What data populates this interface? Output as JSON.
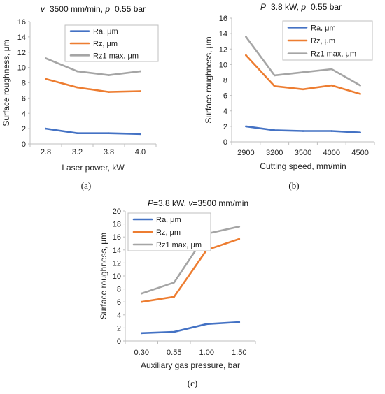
{
  "chart_data": [
    {
      "type": "line",
      "panel_label": "(a)",
      "title_parts": [
        "v",
        "=3500 mm/min, ",
        "p",
        "=0.55 bar"
      ],
      "xlabel": "Laser power, kW",
      "ylabel": "Surface roughness, μm",
      "categories": [
        "2.8",
        "3.2",
        "3.8",
        "4.0"
      ],
      "ylim": [
        0,
        16
      ],
      "yticks": [
        0,
        2,
        4,
        6,
        8,
        10,
        12,
        14,
        16
      ],
      "grid": false,
      "legend_position": "top-right",
      "series": [
        {
          "name": "Ra, μm",
          "color": "#4472C4",
          "values": [
            2.0,
            1.4,
            1.4,
            1.3
          ]
        },
        {
          "name": "Rz, μm",
          "color": "#ED7D31",
          "values": [
            8.5,
            7.4,
            6.8,
            6.9
          ]
        },
        {
          "name": "Rz1 max, μm",
          "color": "#A5A5A5",
          "values": [
            11.2,
            9.5,
            9.0,
            9.5
          ]
        }
      ]
    },
    {
      "type": "line",
      "panel_label": "(b)",
      "title_parts": [
        "P",
        "=3.8 kW, ",
        "p",
        "=0.55 bar"
      ],
      "xlabel": "Cutting speed, mm/min",
      "ylabel": "Surface roughness, μm",
      "categories": [
        "2900",
        "3200",
        "3500",
        "4000",
        "4500"
      ],
      "ylim": [
        0,
        16
      ],
      "yticks": [
        0,
        2,
        4,
        6,
        8,
        10,
        12,
        14,
        16
      ],
      "grid": false,
      "legend_position": "top-right",
      "series": [
        {
          "name": "Ra, μm",
          "color": "#4472C4",
          "values": [
            2.0,
            1.5,
            1.4,
            1.4,
            1.2
          ]
        },
        {
          "name": "Rz, μm",
          "color": "#ED7D31",
          "values": [
            11.2,
            7.2,
            6.8,
            7.3,
            6.2
          ]
        },
        {
          "name": "Rz1 max, μm",
          "color": "#A5A5A5",
          "values": [
            13.6,
            8.6,
            9.0,
            9.4,
            7.3
          ]
        }
      ]
    },
    {
      "type": "line",
      "panel_label": "(c)",
      "title_parts": [
        "P",
        "=3.8 kW, ",
        "v",
        "=3500 mm/min"
      ],
      "xlabel": "Auxiliary gas pressure, bar",
      "ylabel": "Surface roughness, μm",
      "categories": [
        "0.30",
        "0.55",
        "1.00",
        "1.50"
      ],
      "ylim": [
        0,
        20
      ],
      "yticks": [
        0,
        2,
        4,
        6,
        8,
        10,
        12,
        14,
        16,
        18,
        20
      ],
      "grid": false,
      "legend_position": "top-left",
      "series": [
        {
          "name": "Ra, μm",
          "color": "#4472C4",
          "values": [
            1.2,
            1.4,
            2.6,
            2.9
          ]
        },
        {
          "name": "Rz, μm",
          "color": "#ED7D31",
          "values": [
            6.0,
            6.8,
            14.0,
            15.7
          ]
        },
        {
          "name": "Rz1 max, μm",
          "color": "#A5A5A5",
          "values": [
            7.3,
            9.0,
            16.5,
            17.6
          ]
        }
      ]
    }
  ]
}
